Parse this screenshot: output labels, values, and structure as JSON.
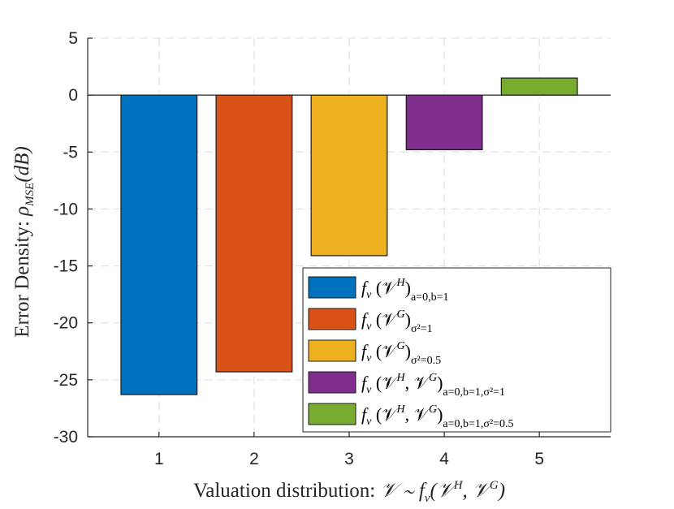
{
  "chart_data": {
    "type": "bar",
    "title": "",
    "xlabel": "Valuation distribution: 𝒱 ∼ f_v(𝒱^H, 𝒱^G)",
    "ylabel": "Error Density: ρ_MSE(dB)",
    "categories": [
      "1",
      "2",
      "3",
      "4",
      "5"
    ],
    "values": [
      -26.3,
      -24.3,
      -14.1,
      -4.8,
      1.5
    ],
    "colors": [
      "#0072BD",
      "#D95319",
      "#EDB120",
      "#7E2F8E",
      "#77AC30"
    ],
    "ylim": [
      -30,
      5
    ],
    "yticks": [
      "5",
      "0",
      "-5",
      "-10",
      "-15",
      "-20",
      "-25",
      "-30"
    ],
    "ytick_values": [
      5,
      0,
      -5,
      -10,
      -15,
      -20,
      -25,
      -30
    ],
    "grid": true,
    "legend_position": "bottom-right",
    "legend": [
      {
        "main": "f",
        "sub_v": "v",
        "args": "(𝒱",
        "sup1": "H",
        "mid": "",
        "sup2": "",
        "close": ")",
        "sub": "a=0,b=1"
      },
      {
        "main": "f",
        "sub_v": "v",
        "args": "(𝒱",
        "sup1": "G",
        "mid": "",
        "sup2": "",
        "close": ")",
        "sub": "σ²=1"
      },
      {
        "main": "f",
        "sub_v": "v",
        "args": "(𝒱",
        "sup1": "G",
        "mid": "",
        "sup2": "",
        "close": ")",
        "sub": "σ²=0.5"
      },
      {
        "main": "f",
        "sub_v": "v",
        "args": "(𝒱",
        "sup1": "H",
        "mid": ", 𝒱",
        "sup2": "G",
        "close": ")",
        "sub": "a=0,b=1,σ²=1"
      },
      {
        "main": "f",
        "sub_v": "v",
        "args": "(𝒱",
        "sup1": "H",
        "mid": ", 𝒱",
        "sup2": "G",
        "close": ")",
        "sub": "a=0,b=1,σ²=0.5"
      }
    ]
  },
  "xlabel_parts": {
    "text": "Valuation distribution: ",
    "math": "𝒱 ∼ f",
    "sub": "v",
    "rest": "(𝒱",
    "sup1": "H",
    "comma": ", 𝒱",
    "sup2": "G",
    "close": ")"
  },
  "ylabel_parts": {
    "text": "Error Density: ",
    "rho": "ρ",
    "sub": "MSE",
    "rest": "(dB)"
  }
}
